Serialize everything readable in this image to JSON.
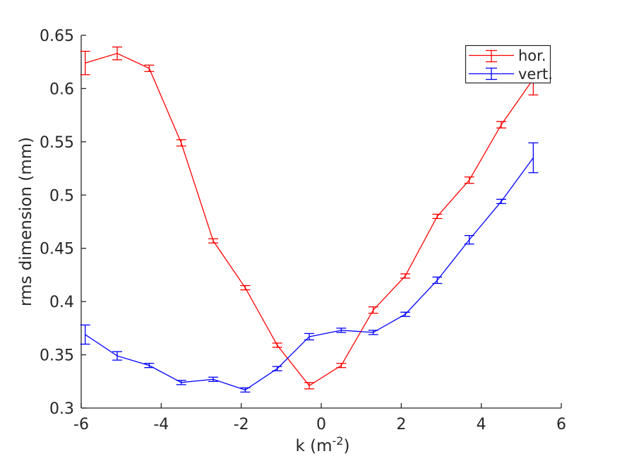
{
  "figure": {
    "background": "#ffffff"
  },
  "axes": {
    "ylabel": "rms dimension (mm)",
    "xlabel": {
      "prefix": "k (m",
      "superscript": "-2",
      "suffix": ")"
    },
    "xlim": [
      -6,
      6
    ],
    "ylim": [
      0.3,
      0.65
    ],
    "xticks": [
      -6,
      -4,
      -2,
      0,
      2,
      4,
      6
    ],
    "xtick_labels": [
      "-6",
      "-4",
      "-2",
      "0",
      "2",
      "4",
      "6"
    ],
    "yticks": [
      0.3,
      0.35,
      0.4,
      0.45,
      0.5,
      0.55,
      0.6,
      0.65
    ],
    "ytick_labels": [
      "0.3",
      "0.35",
      "0.4",
      "0.45",
      "0.5",
      "0.55",
      "0.6",
      "0.65"
    ],
    "axis_color": "#262626",
    "text_color": "#262626"
  },
  "legend": {
    "background": "#ffffff",
    "border_color": "#262626",
    "entries": [
      {
        "label": "hor.",
        "color": "#ff0000"
      },
      {
        "label": "vert.",
        "color": "#0000ff"
      }
    ]
  },
  "chart_data": {
    "type": "line",
    "title": "",
    "xlabel": "k (m^-2)",
    "ylabel": "rms dimension (mm)",
    "xlim": [
      -6,
      6
    ],
    "ylim": [
      0.3,
      0.65
    ],
    "xticks": [
      -6,
      -4,
      -2,
      0,
      2,
      4,
      6
    ],
    "yticks": [
      0.3,
      0.35,
      0.4,
      0.45,
      0.5,
      0.55,
      0.6,
      0.65
    ],
    "grid": false,
    "error_bars": true,
    "legend_position": "top-right",
    "x": [
      -5.9,
      -5.1,
      -4.3,
      -3.5,
      -2.7,
      -1.9,
      -1.1,
      -0.3,
      0.5,
      1.3,
      2.1,
      2.9,
      3.7,
      4.5,
      5.3
    ],
    "series": [
      {
        "name": "hor.",
        "color": "#ff0000",
        "values": [
          0.624,
          0.633,
          0.619,
          0.549,
          0.457,
          0.413,
          0.359,
          0.321,
          0.34,
          0.392,
          0.424,
          0.48,
          0.514,
          0.566,
          0.609
        ],
        "errors": [
          0.011,
          0.006,
          0.003,
          0.003,
          0.002,
          0.002,
          0.002,
          0.003,
          0.002,
          0.003,
          0.002,
          0.002,
          0.003,
          0.003,
          0.015
        ]
      },
      {
        "name": "vert.",
        "color": "#0000ff",
        "values": [
          0.369,
          0.349,
          0.34,
          0.324,
          0.327,
          0.317,
          0.337,
          0.367,
          0.373,
          0.371,
          0.388,
          0.42,
          0.458,
          0.494,
          0.535
        ],
        "errors": [
          0.009,
          0.004,
          0.002,
          0.002,
          0.002,
          0.002,
          0.002,
          0.003,
          0.002,
          0.002,
          0.002,
          0.003,
          0.004,
          0.002,
          0.014
        ]
      }
    ]
  }
}
